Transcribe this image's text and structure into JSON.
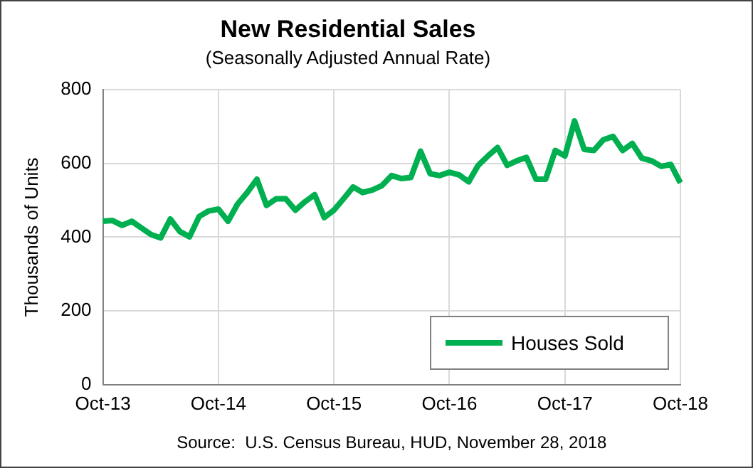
{
  "chart_data": {
    "type": "line",
    "title": "New Residential Sales",
    "subtitle": "(Seasonally Adjusted Annual Rate)",
    "ylabel": "Thousands of Units",
    "categories": [
      "Oct-13",
      null,
      null,
      null,
      null,
      null,
      null,
      null,
      null,
      null,
      null,
      null,
      "Oct-14",
      null,
      null,
      null,
      null,
      null,
      null,
      null,
      null,
      null,
      null,
      null,
      "Oct-15",
      null,
      null,
      null,
      null,
      null,
      null,
      null,
      null,
      null,
      null,
      null,
      "Oct-16",
      null,
      null,
      null,
      null,
      null,
      null,
      null,
      null,
      null,
      null,
      null,
      "Oct-17",
      null,
      null,
      null,
      null,
      null,
      null,
      null,
      null,
      null,
      null,
      null,
      "Oct-18"
    ],
    "series": [
      {
        "name": "Houses Sold",
        "color": "#00b050",
        "values": [
          443,
          445,
          432,
          443,
          425,
          407,
          398,
          449,
          415,
          401,
          456,
          471,
          476,
          443,
          490,
          521,
          557,
          486,
          504,
          504,
          473,
          496,
          515,
          453,
          473,
          504,
          536,
          521,
          528,
          540,
          567,
          559,
          562,
          633,
          572,
          567,
          576,
          569,
          550,
          595,
          620,
          643,
          595,
          607,
          616,
          557,
          557,
          635,
          620,
          715,
          638,
          635,
          664,
          673,
          635,
          654,
          614,
          607,
          592,
          597,
          547
        ]
      }
    ],
    "ylim": [
      0,
      800
    ],
    "yticks": [
      0,
      200,
      400,
      600,
      800
    ],
    "grid": true,
    "legend": "bottom right",
    "marker": "none",
    "line_style": "solid",
    "annotations": [
      "Source:  U.S. Census Bureau, HUD, November 28, 2018"
    ]
  }
}
